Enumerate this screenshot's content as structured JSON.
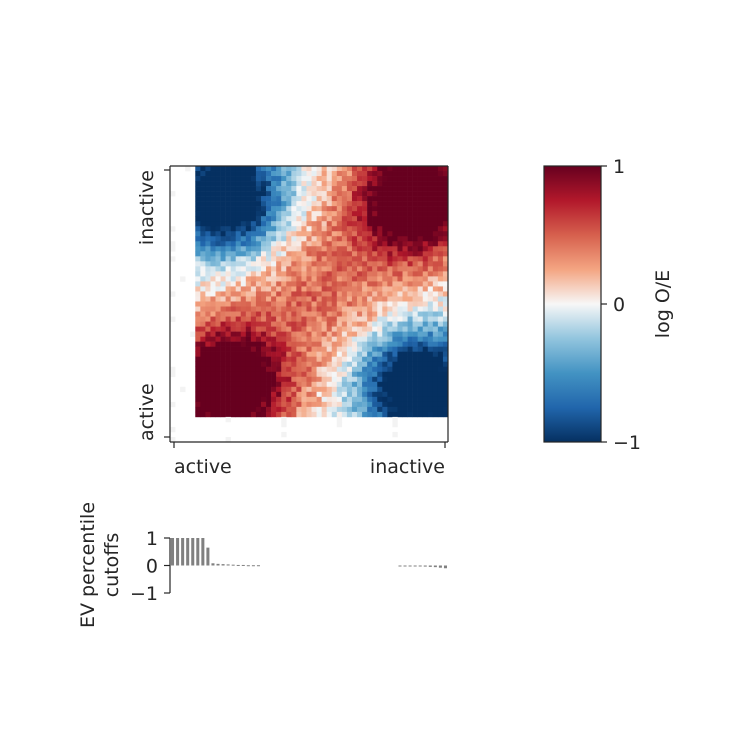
{
  "chart_data": [
    {
      "type": "heatmap",
      "title": "",
      "xlabel": "",
      "ylabel": "",
      "x_tick_labels": [
        "active",
        "inactive"
      ],
      "y_tick_labels": [
        "inactive",
        "active"
      ],
      "grid": false,
      "description_of_pattern": {
        "grid_size": [
          55,
          55
        ],
        "active_bins": 50,
        "value_range": [
          -1,
          1
        ],
        "blocks": [
          {
            "quadrant": "top-left",
            "sign": "negative",
            "peak": -1.0
          },
          {
            "quadrant": "top-right",
            "sign": "positive",
            "peak": 1.0
          },
          {
            "quadrant": "bottom-left",
            "sign": "positive",
            "peak": 1.0
          },
          {
            "quadrant": "bottom-right",
            "sign": "negative",
            "peak": -1.0
          },
          {
            "quadrant": "center",
            "sign": "positive",
            "peak": 0.45
          }
        ]
      },
      "colormap": "RdBu_r",
      "colors": {
        "low": "#053061",
        "mid": "#f7f7f7",
        "high": "#67001f"
      }
    },
    {
      "type": "colorbar",
      "label": "log O/E",
      "ticks": [
        {
          "value": 1,
          "label": "1"
        },
        {
          "value": 0,
          "label": "0"
        },
        {
          "value": -1,
          "label": "−1"
        }
      ],
      "vmin": -1,
      "vmax": 1
    },
    {
      "type": "bar",
      "ylabel_lines": [
        "EV percentile",
        "cutoffs"
      ],
      "ylim": [
        -1,
        1
      ],
      "yticks": [
        {
          "value": 1,
          "label": "1"
        },
        {
          "value": 0,
          "label": "0"
        },
        {
          "value": -1,
          "label": "−1"
        }
      ],
      "bins": 55,
      "values": [
        1,
        1,
        1,
        1,
        1,
        1,
        1,
        0.65,
        0.08,
        0.06,
        0.05,
        0.04,
        0.03,
        0.02,
        0.02,
        0.01,
        0.01,
        0.01,
        0.0,
        0,
        0,
        0,
        0,
        0,
        0,
        0,
        0,
        0,
        0,
        0,
        0,
        0,
        0,
        0,
        0,
        0,
        0,
        0,
        0,
        0,
        0,
        0,
        0,
        0,
        0,
        -0.01,
        -0.01,
        -0.02,
        -0.02,
        -0.03,
        -0.04,
        -0.05,
        -0.06,
        -0.08,
        -0.1
      ],
      "color": "#808080"
    }
  ]
}
